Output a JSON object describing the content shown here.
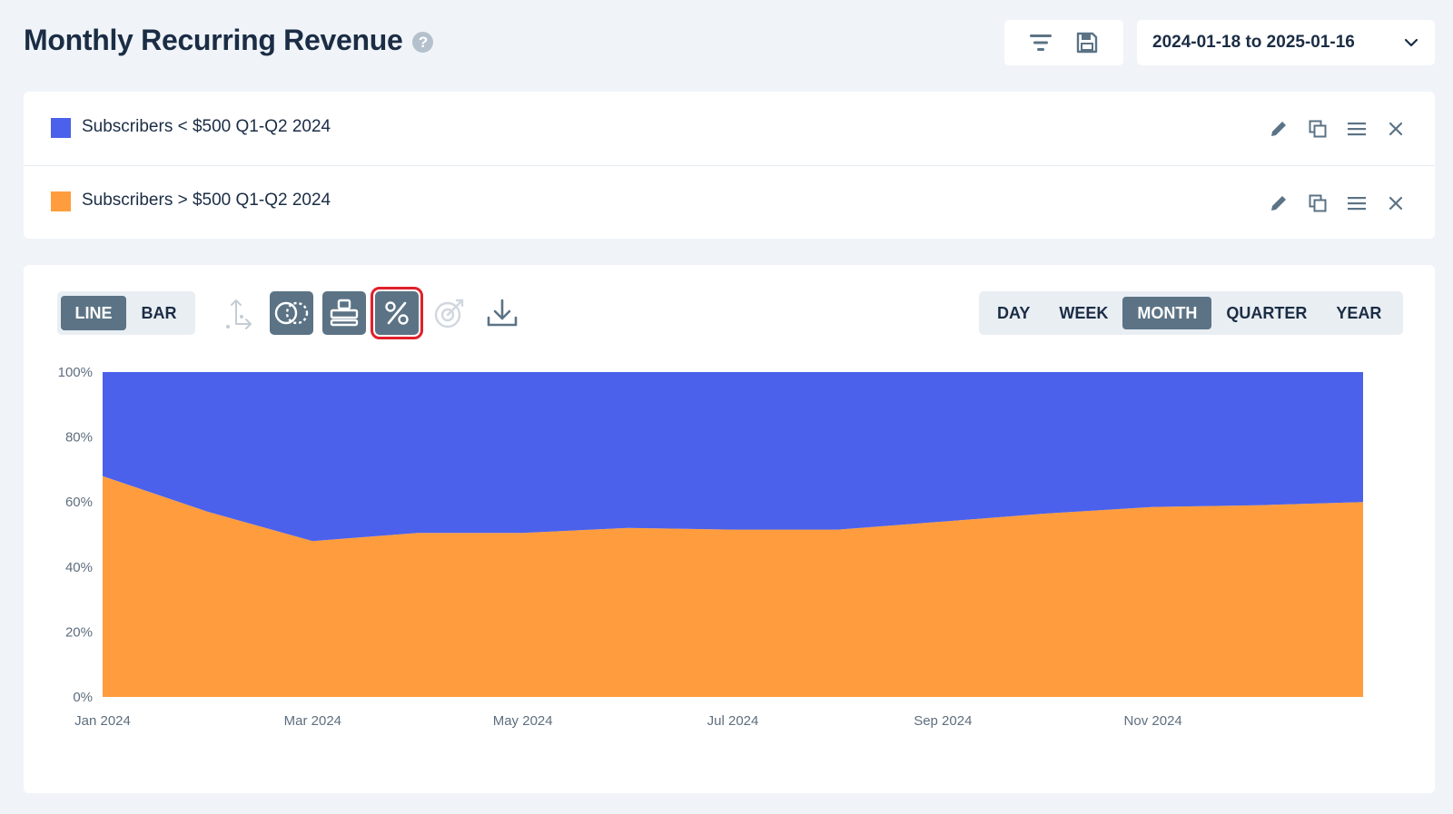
{
  "header": {
    "title": "Monthly Recurring Revenue",
    "help_icon": "question-circle-icon",
    "filter_icon": "filter-icon",
    "save_icon": "floppy-disk-icon",
    "date_range": "2024-01-18 to 2025-01-16"
  },
  "segments": [
    {
      "label": "Subscribers < $500 Q1-Q2 2024",
      "color": "#4b61eb"
    },
    {
      "label": "Subscribers > $500 Q1-Q2 2024",
      "color": "#ff9d3e"
    }
  ],
  "chart_controls": {
    "types": [
      "LINE",
      "BAR"
    ],
    "active_type": "LINE",
    "periods": [
      "DAY",
      "WEEK",
      "MONTH",
      "QUARTER",
      "YEAR"
    ],
    "active_period": "MONTH",
    "tools": [
      "axis-icon",
      "overlap-circles-icon",
      "stack-icon",
      "percent-icon",
      "target-icon",
      "download-icon"
    ]
  },
  "chart_data": {
    "type": "area",
    "stacked": true,
    "normalized_percent": true,
    "x": [
      "2024-01",
      "2024-02",
      "2024-03",
      "2024-04",
      "2024-05",
      "2024-06",
      "2024-07",
      "2024-08",
      "2024-09",
      "2024-10",
      "2024-11",
      "2024-12",
      "2025-01"
    ],
    "x_tick_labels": [
      "Jan 2024",
      "Mar 2024",
      "May 2024",
      "Jul 2024",
      "Sep 2024",
      "Nov 2024"
    ],
    "y_tick_labels": [
      "0%",
      "20%",
      "40%",
      "60%",
      "80%",
      "100%"
    ],
    "ylim": [
      0,
      100
    ],
    "series": [
      {
        "name": "Subscribers > $500 Q1-Q2 2024",
        "color": "#ff9d3e",
        "values": [
          68,
          57,
          48,
          50.5,
          50.5,
          52,
          51.5,
          51.5,
          54,
          56.5,
          58.5,
          59,
          60
        ]
      },
      {
        "name": "Subscribers < $500 Q1-Q2 2024",
        "color": "#4b61eb",
        "values": [
          32,
          43,
          52,
          49.5,
          49.5,
          48,
          48.5,
          48.5,
          46,
          43.5,
          41.5,
          41,
          40
        ]
      }
    ],
    "grid": false,
    "legend": "none"
  }
}
